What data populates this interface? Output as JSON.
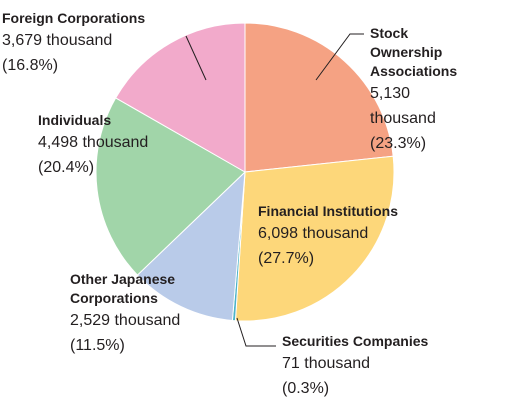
{
  "chart_data": {
    "type": "pie",
    "categories": [
      "Stock Ownership Associations",
      "Financial Institutions",
      "Securities Companies",
      "Other Japanese Corporations",
      "Individuals",
      "Foreign Corporations"
    ],
    "values": [
      5130,
      6098,
      71,
      2529,
      4498,
      3679
    ],
    "value_labels": [
      "5,130 thousand",
      "6,098 thousand",
      "71 thousand",
      "2,529 thousand",
      "4,498 thousand",
      "3,679 thousand"
    ],
    "percents": [
      23.3,
      27.7,
      0.3,
      11.5,
      20.4,
      16.8
    ],
    "percent_labels": [
      "(23.3%)",
      "(27.7%)",
      "(0.3%)",
      "(11.5%)",
      "(20.4%)",
      "(16.8%)"
    ],
    "colors": [
      "#f5a283",
      "#fdd77a",
      "#4fb4c9",
      "#b9cbe9",
      "#a1d5a9",
      "#f2aacb"
    ]
  }
}
